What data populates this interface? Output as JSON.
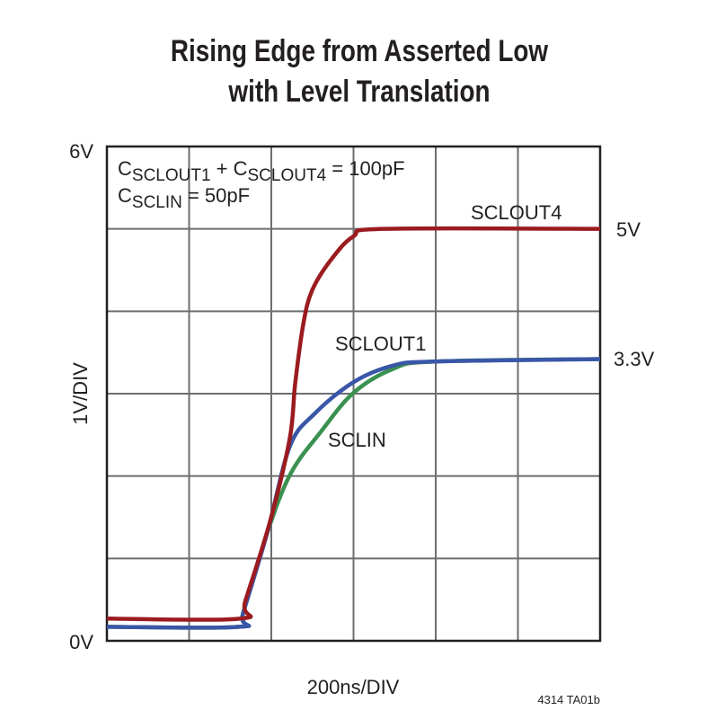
{
  "chart_data": {
    "type": "line",
    "title_lines": [
      "Rising Edge from Asserted Low",
      "with Level Translation"
    ],
    "xlabel": "200ns/DIV",
    "ylabel": "1V/DIV",
    "y_tick_labels": {
      "top": "6V",
      "bottom": "0V"
    },
    "xlim": [
      0,
      1200
    ],
    "ylim": [
      0,
      6
    ],
    "x_units": "ns",
    "y_units": "V",
    "grid": true,
    "grid_divisions": {
      "x": 6,
      "y": 6
    },
    "annotation": {
      "line1": [
        {
          "text": "C",
          "sub": "SCLOUT1"
        },
        {
          "text": " + C",
          "sub": "SCLOUT4"
        },
        {
          "text": " = 100pF",
          "sub": ""
        }
      ],
      "line2": [
        {
          "text": "C",
          "sub": "SCLIN"
        },
        {
          "text": " = 50pF",
          "sub": ""
        }
      ]
    },
    "right_labels": [
      "5V",
      "3.3V"
    ],
    "figure_id": "4314 TA01b",
    "series": [
      {
        "name": "SCLOUT4",
        "color": "#9b1b1f",
        "x": [
          0,
          325,
          336,
          397,
          445,
          458,
          478,
          499,
          543,
          600,
          674,
          1200
        ],
        "y": [
          0.27,
          0.27,
          0.47,
          1.45,
          2.46,
          3.12,
          3.85,
          4.25,
          4.61,
          4.91,
          5.0,
          5.0
        ]
      },
      {
        "name": "SCLOUT1",
        "color": "#3a56a8",
        "x": [
          0,
          321,
          331,
          390,
          445,
          506,
          600,
          696,
          796,
          1200
        ],
        "y": [
          0.17,
          0.17,
          0.33,
          1.31,
          2.36,
          2.76,
          3.14,
          3.34,
          3.39,
          3.42
        ]
      },
      {
        "name": "SCLIN",
        "color": "#3a9150",
        "x": [
          0,
          321,
          331,
          390,
          447,
          521,
          600,
          696,
          796,
          1200
        ],
        "y": [
          0.17,
          0.17,
          0.33,
          1.31,
          2.03,
          2.54,
          3.01,
          3.3,
          3.39,
          3.42
        ]
      }
    ]
  }
}
